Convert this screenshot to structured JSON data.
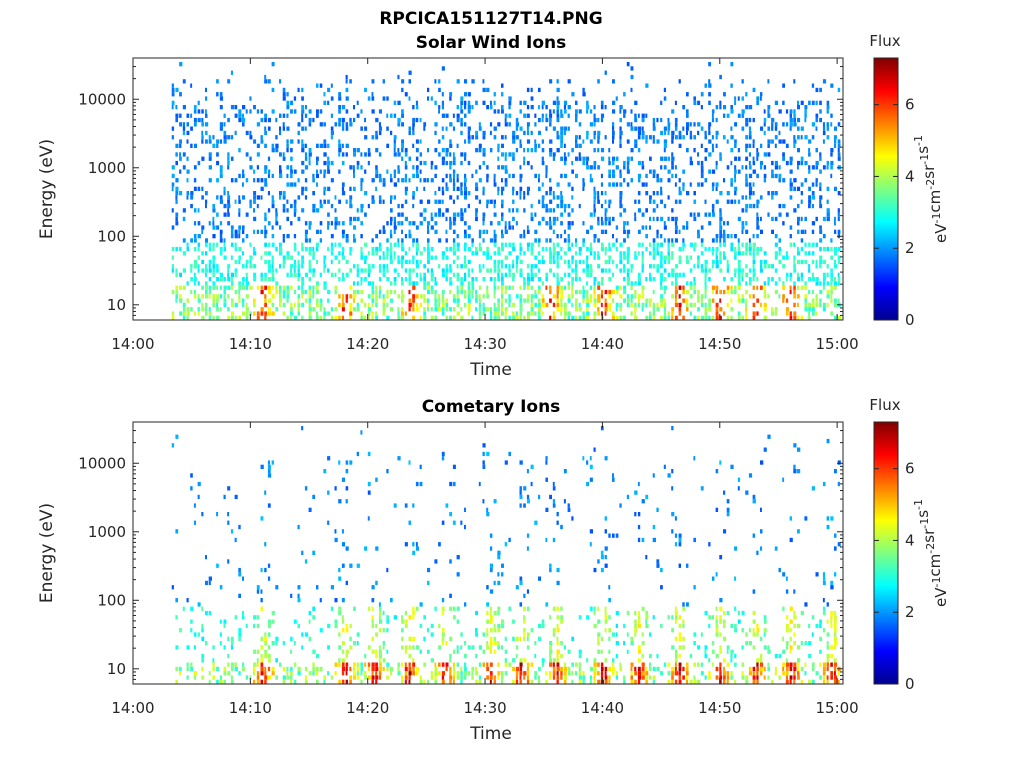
{
  "figure": {
    "suptitle": "RPCICA151127T14.PNG"
  },
  "chart_data": [
    {
      "type": "heatmap",
      "title": "Solar Wind Ions",
      "xlabel": "Time",
      "ylabel": "Energy (eV)",
      "xticks": [
        "14:00",
        "14:10",
        "14:20",
        "14:30",
        "14:40",
        "14:50",
        "15:00"
      ],
      "xlim_minutes": [
        0,
        60.5
      ],
      "yscale": "log",
      "yticks": [
        "10",
        "100",
        "1000",
        "10000"
      ],
      "ytick_values": [
        10,
        100,
        1000,
        10000
      ],
      "ylim": [
        6,
        40000
      ],
      "data_start_minute": 3.3,
      "colorbar": {
        "title": "Flux",
        "label": "eV-1cm-2sr-1s-1",
        "ticks": [
          "0",
          "2",
          "4",
          "6"
        ],
        "range": [
          0,
          7.3
        ]
      },
      "hotspot_minutes": [
        11,
        18,
        23.5,
        35.5,
        40,
        46.5,
        50,
        53,
        56
      ]
    },
    {
      "type": "heatmap",
      "title": "Cometary Ions",
      "xlabel": "Time",
      "ylabel": "Energy (eV)",
      "xticks": [
        "14:00",
        "14:10",
        "14:20",
        "14:30",
        "14:40",
        "14:50",
        "15:00"
      ],
      "xlim_minutes": [
        0,
        60.5
      ],
      "yscale": "log",
      "yticks": [
        "10",
        "100",
        "1000",
        "10000"
      ],
      "ytick_values": [
        10,
        100,
        1000,
        10000
      ],
      "ylim": [
        6,
        40000
      ],
      "data_start_minute": 3.3,
      "colorbar": {
        "title": "Flux",
        "label": "eV-1cm-2sr-1s-1",
        "ticks": [
          "0",
          "2",
          "4",
          "6"
        ],
        "range": [
          0,
          7.3
        ]
      },
      "hotspot_minutes": [
        11,
        18,
        20.5,
        23.5,
        26.5,
        30.5,
        33,
        36,
        40,
        43,
        46.5,
        50,
        53,
        56,
        59.5
      ]
    }
  ]
}
